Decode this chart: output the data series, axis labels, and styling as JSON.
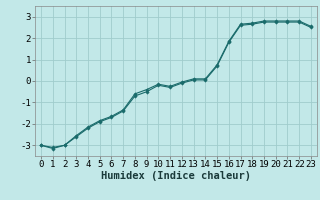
{
  "title": "",
  "xlabel": "Humidex (Indice chaleur)",
  "ylabel": "",
  "bg_color": "#c2e8e8",
  "grid_color": "#a0cccc",
  "line_color": "#1a6b6b",
  "xlim": [
    -0.5,
    23.5
  ],
  "ylim": [
    -3.5,
    3.5
  ],
  "xticks": [
    0,
    1,
    2,
    3,
    4,
    5,
    6,
    7,
    8,
    9,
    10,
    11,
    12,
    13,
    14,
    15,
    16,
    17,
    18,
    19,
    20,
    21,
    22,
    23
  ],
  "yticks": [
    -3,
    -2,
    -1,
    0,
    1,
    2,
    3
  ],
  "line1_x": [
    0,
    1,
    2,
    3,
    4,
    5,
    6,
    7,
    8,
    9,
    10,
    11,
    12,
    13,
    14,
    15,
    16,
    17,
    18,
    19,
    20,
    21,
    22,
    23
  ],
  "line1_y": [
    -3.0,
    -3.15,
    -3.0,
    -2.6,
    -2.2,
    -1.9,
    -1.7,
    -1.4,
    -0.7,
    -0.5,
    -0.2,
    -0.3,
    -0.1,
    0.05,
    0.05,
    0.7,
    1.8,
    2.6,
    2.65,
    2.75,
    2.75,
    2.75,
    2.75,
    2.5
  ],
  "line2_x": [
    0,
    1,
    2,
    3,
    4,
    5,
    6,
    7,
    8,
    9,
    10,
    11,
    12,
    13,
    14,
    15,
    16,
    17,
    18,
    19,
    20,
    21,
    22,
    23
  ],
  "line2_y": [
    -3.0,
    -3.1,
    -3.0,
    -2.55,
    -2.15,
    -1.85,
    -1.65,
    -1.35,
    -0.6,
    -0.4,
    -0.15,
    -0.25,
    -0.05,
    0.1,
    0.1,
    0.75,
    1.85,
    2.65,
    2.7,
    2.8,
    2.8,
    2.8,
    2.8,
    2.55
  ],
  "marker": "D",
  "marker_size": 1.8,
  "line_width": 0.8,
  "xlabel_fontsize": 7.5,
  "tick_fontsize": 6.5
}
